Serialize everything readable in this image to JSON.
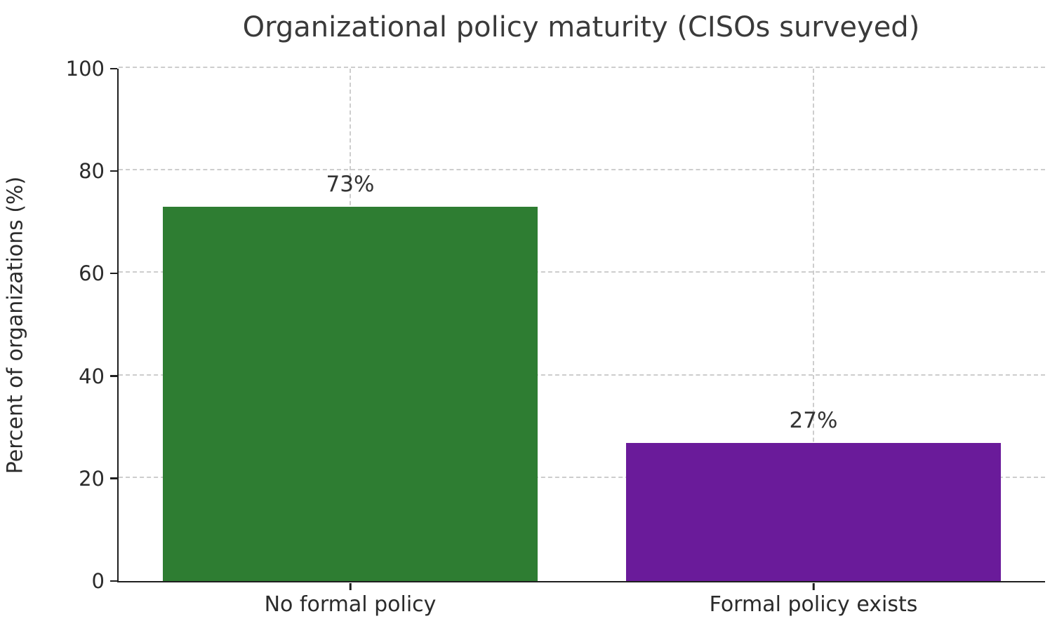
{
  "chart_data": {
    "type": "bar",
    "title": "Organizational policy maturity (CISOs surveyed)",
    "xlabel": "",
    "ylabel": "Percent of organizations (%)",
    "categories": [
      "No formal policy",
      "Formal policy exists"
    ],
    "values": [
      73,
      27
    ],
    "value_labels": [
      "73%",
      "27%"
    ],
    "bar_colors": [
      "#2e7d32",
      "#6a1b9a"
    ],
    "ylim": [
      0,
      100
    ],
    "yticks": [
      0,
      20,
      40,
      60,
      80,
      100
    ],
    "grid": {
      "horizontal": true,
      "vertical_at_category_centers": true,
      "style": "dashed",
      "color": "#cdcdcd"
    },
    "legend": null,
    "spine_color": "#1f1f1f",
    "background_color": "#ffffff"
  }
}
